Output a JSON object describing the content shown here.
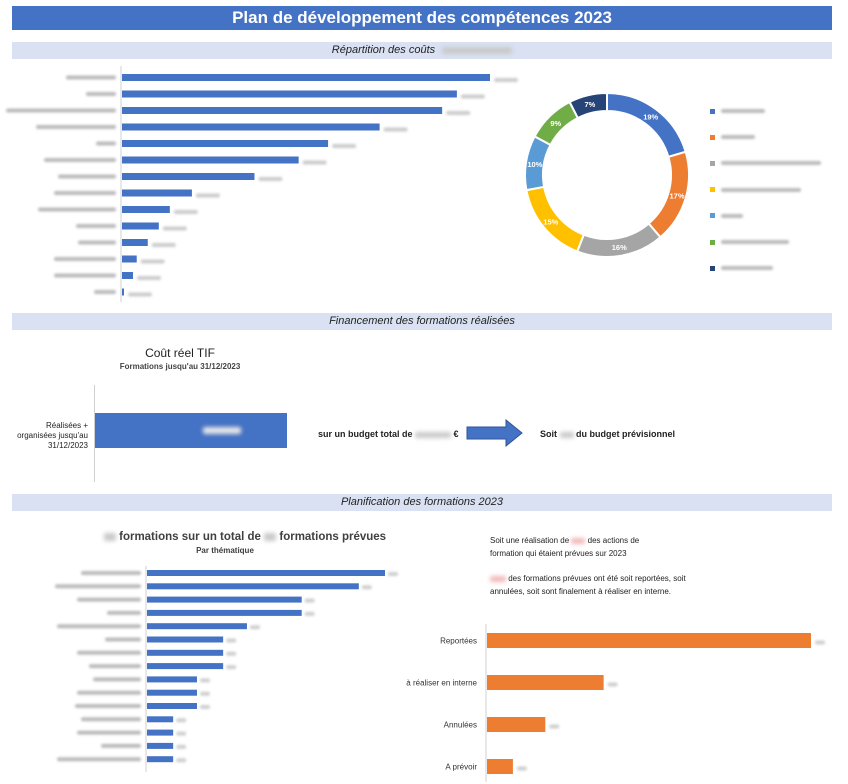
{
  "header": {
    "title": "Plan de développement des compétences 2023"
  },
  "sections": {
    "couts": "Répartition des coûts",
    "financement": "Financement des formations réalisées",
    "planification": "Planification des formations 2023"
  },
  "colors": {
    "blue": "#4472c4",
    "orange": "#ed7d31",
    "band": "#d9e1f2",
    "title_bg": "#4472c4",
    "dark_blue": "#203864"
  },
  "chart_data": [
    {
      "id": "couts-bar",
      "type": "bar",
      "orientation": "horizontal",
      "categories": [
        "",
        "",
        "",
        "",
        "",
        "",
        "",
        "",
        "",
        "",
        "",
        "",
        "",
        ""
      ],
      "values": [
        100,
        91,
        87,
        70,
        56,
        48,
        36,
        19,
        13,
        10,
        7,
        4,
        3,
        0.5
      ],
      "note": "category labels and values are blurred in the original"
    },
    {
      "id": "couts-donut",
      "type": "pie",
      "donut": true,
      "values": [
        19,
        17,
        16,
        15,
        10,
        9,
        7
      ],
      "labels": [
        "19%",
        "17%",
        "16%",
        "15%",
        "10%",
        "9%",
        "7%"
      ],
      "colors": [
        "#4472c4",
        "#ed7d31",
        "#a5a5a5",
        "#ffc000",
        "#5b9bd5",
        "#70ad47",
        "#264478"
      ],
      "legend_position": "right"
    },
    {
      "id": "tif-bar",
      "type": "bar",
      "orientation": "horizontal",
      "title": "Coût réel TIF",
      "subtitle": "Formations jusqu'au 31/12/2023",
      "categories": [
        "Réalisées + organisées jusqu'au 31/12/2023"
      ],
      "values": [
        1
      ]
    },
    {
      "id": "thematique-bar",
      "type": "bar",
      "orientation": "horizontal",
      "title_parts": [
        "formations sur un total de",
        "formations prévues"
      ],
      "subtitle": "Par thématique",
      "categories": [
        "",
        "",
        "",
        "",
        "",
        "",
        "",
        "",
        "",
        "",
        "",
        "",
        "",
        "",
        ""
      ],
      "values": [
        100,
        89,
        65,
        65,
        42,
        32,
        32,
        32,
        21,
        21,
        21,
        11,
        11,
        11,
        11
      ]
    },
    {
      "id": "statut-bar",
      "type": "bar",
      "orientation": "horizontal",
      "categories": [
        "Reportées",
        "à réaliser en interne",
        "Annulées",
        "A prévoir"
      ],
      "values": [
        100,
        36,
        18,
        8
      ],
      "color": "#ed7d31"
    }
  ],
  "financement": {
    "budget_text_before": "sur un budget total de",
    "budget_text_after": "€",
    "soit_before": "Soit",
    "soit_after": "du budget prévisionnel"
  },
  "planification": {
    "text1_part1": "Soit une réalisation de",
    "text1_part2": "des actions de formation qui étaient prévues sur 2023",
    "text2_part2": "des formations prévues ont été soit reportées, soit annulées, soit sont finalement à réaliser en interne."
  }
}
